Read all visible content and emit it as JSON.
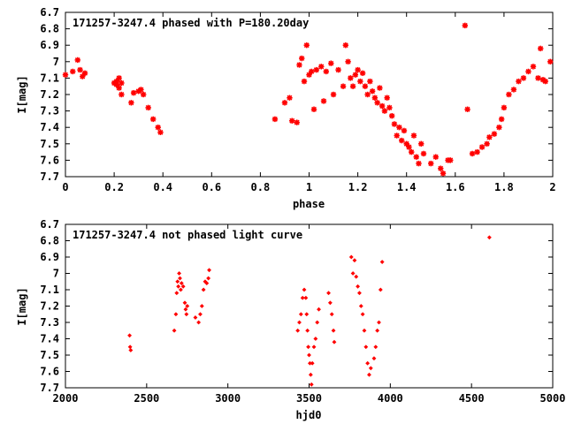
{
  "chart_data": [
    {
      "type": "scatter",
      "title": "171257-3247.4 phased with P=180.20day",
      "xlabel": "phase",
      "ylabel": "I[mag]",
      "xlim": [
        0,
        2
      ],
      "ylim": [
        6.7,
        7.7
      ],
      "y_inverted": true,
      "grid": false,
      "marker_color": "#ff0000",
      "marker": "star",
      "xticks": [
        "0",
        "0.2",
        "0.4",
        "0.6",
        "0.8",
        "1",
        "1.2",
        "1.4",
        "1.6",
        "1.8",
        "2"
      ],
      "yticks": [
        "6.7",
        "6.8",
        "6.9",
        "7",
        "7.1",
        "7.2",
        "7.3",
        "7.4",
        "7.5",
        "7.6",
        "7.7"
      ],
      "points": [
        [
          0.0,
          7.08
        ],
        [
          0.03,
          7.06
        ],
        [
          0.05,
          6.99
        ],
        [
          0.06,
          7.05
        ],
        [
          0.07,
          7.09
        ],
        [
          0.08,
          7.07
        ],
        [
          0.2,
          7.13
        ],
        [
          0.21,
          7.12
        ],
        [
          0.21,
          7.14
        ],
        [
          0.22,
          7.1
        ],
        [
          0.22,
          7.16
        ],
        [
          0.23,
          7.2
        ],
        [
          0.23,
          7.13
        ],
        [
          0.27,
          7.25
        ],
        [
          0.28,
          7.19
        ],
        [
          0.3,
          7.18
        ],
        [
          0.31,
          7.17
        ],
        [
          0.32,
          7.2
        ],
        [
          0.34,
          7.28
        ],
        [
          0.36,
          7.35
        ],
        [
          0.38,
          7.4
        ],
        [
          0.39,
          7.43
        ],
        [
          0.86,
          7.35
        ],
        [
          0.9,
          7.25
        ],
        [
          0.92,
          7.22
        ],
        [
          0.93,
          7.36
        ],
        [
          0.95,
          7.37
        ],
        [
          0.96,
          7.02
        ],
        [
          0.97,
          6.98
        ],
        [
          0.98,
          7.12
        ],
        [
          0.99,
          6.9
        ],
        [
          1.0,
          7.08
        ],
        [
          1.01,
          7.06
        ],
        [
          1.02,
          7.29
        ],
        [
          1.03,
          7.05
        ],
        [
          1.05,
          7.03
        ],
        [
          1.06,
          7.24
        ],
        [
          1.07,
          7.06
        ],
        [
          1.09,
          7.01
        ],
        [
          1.1,
          7.2
        ],
        [
          1.12,
          7.05
        ],
        [
          1.14,
          7.15
        ],
        [
          1.15,
          6.9
        ],
        [
          1.16,
          7.0
        ],
        [
          1.17,
          7.1
        ],
        [
          1.18,
          7.15
        ],
        [
          1.19,
          7.08
        ],
        [
          1.2,
          7.05
        ],
        [
          1.21,
          7.12
        ],
        [
          1.22,
          7.07
        ],
        [
          1.23,
          7.15
        ],
        [
          1.24,
          7.2
        ],
        [
          1.25,
          7.12
        ],
        [
          1.26,
          7.18
        ],
        [
          1.27,
          7.22
        ],
        [
          1.28,
          7.25
        ],
        [
          1.29,
          7.16
        ],
        [
          1.3,
          7.27
        ],
        [
          1.31,
          7.3
        ],
        [
          1.32,
          7.22
        ],
        [
          1.33,
          7.28
        ],
        [
          1.34,
          7.33
        ],
        [
          1.35,
          7.38
        ],
        [
          1.36,
          7.45
        ],
        [
          1.37,
          7.4
        ],
        [
          1.38,
          7.48
        ],
        [
          1.39,
          7.42
        ],
        [
          1.4,
          7.5
        ],
        [
          1.41,
          7.52
        ],
        [
          1.42,
          7.55
        ],
        [
          1.43,
          7.45
        ],
        [
          1.44,
          7.58
        ],
        [
          1.45,
          7.62
        ],
        [
          1.46,
          7.5
        ],
        [
          1.47,
          7.56
        ],
        [
          1.5,
          7.62
        ],
        [
          1.52,
          7.58
        ],
        [
          1.54,
          7.65
        ],
        [
          1.55,
          7.68
        ],
        [
          1.57,
          7.6
        ],
        [
          1.58,
          7.6
        ],
        [
          1.64,
          6.78
        ],
        [
          1.65,
          7.29
        ],
        [
          1.67,
          7.56
        ],
        [
          1.69,
          7.55
        ],
        [
          1.71,
          7.52
        ],
        [
          1.73,
          7.5
        ],
        [
          1.74,
          7.46
        ],
        [
          1.76,
          7.44
        ],
        [
          1.78,
          7.4
        ],
        [
          1.79,
          7.35
        ],
        [
          1.8,
          7.28
        ],
        [
          1.82,
          7.2
        ],
        [
          1.84,
          7.17
        ],
        [
          1.86,
          7.12
        ],
        [
          1.88,
          7.1
        ],
        [
          1.9,
          7.06
        ],
        [
          1.92,
          7.03
        ],
        [
          1.94,
          7.1
        ],
        [
          1.95,
          6.92
        ],
        [
          1.96,
          7.11
        ],
        [
          1.97,
          7.12
        ],
        [
          1.99,
          7.0
        ]
      ]
    },
    {
      "type": "scatter",
      "title": "171257-3247.4 not phased light curve",
      "xlabel": "hjd0",
      "ylabel": "I[mag]",
      "xlim": [
        2000,
        5000
      ],
      "ylim": [
        6.7,
        7.7
      ],
      "y_inverted": true,
      "grid": false,
      "marker_color": "#ff0000",
      "marker": "diamond",
      "xticks": [
        "2000",
        "2500",
        "3000",
        "3500",
        "4000",
        "4500",
        "5000"
      ],
      "yticks": [
        "6.7",
        "6.8",
        "6.9",
        "7",
        "7.1",
        "7.2",
        "7.3",
        "7.4",
        "7.5",
        "7.6",
        "7.7"
      ],
      "points": [
        [
          2395,
          7.38
        ],
        [
          2398,
          7.45
        ],
        [
          2402,
          7.47
        ],
        [
          2670,
          7.35
        ],
        [
          2680,
          7.25
        ],
        [
          2685,
          7.12
        ],
        [
          2690,
          7.05
        ],
        [
          2695,
          7.08
        ],
        [
          2700,
          7.0
        ],
        [
          2705,
          7.03
        ],
        [
          2710,
          7.1
        ],
        [
          2715,
          7.06
        ],
        [
          2725,
          7.08
        ],
        [
          2735,
          7.18
        ],
        [
          2740,
          7.22
        ],
        [
          2745,
          7.25
        ],
        [
          2750,
          7.2
        ],
        [
          2800,
          7.27
        ],
        [
          2820,
          7.3
        ],
        [
          2830,
          7.25
        ],
        [
          2840,
          7.2
        ],
        [
          2850,
          7.1
        ],
        [
          2860,
          7.05
        ],
        [
          2870,
          7.06
        ],
        [
          2880,
          7.03
        ],
        [
          2885,
          6.98
        ],
        [
          3430,
          7.35
        ],
        [
          3440,
          7.3
        ],
        [
          3450,
          7.25
        ],
        [
          3460,
          7.15
        ],
        [
          3470,
          7.1
        ],
        [
          3480,
          7.15
        ],
        [
          3485,
          7.25
        ],
        [
          3490,
          7.35
        ],
        [
          3495,
          7.45
        ],
        [
          3500,
          7.5
        ],
        [
          3505,
          7.55
        ],
        [
          3510,
          7.62
        ],
        [
          3515,
          7.68
        ],
        [
          3520,
          7.55
        ],
        [
          3530,
          7.45
        ],
        [
          3540,
          7.4
        ],
        [
          3550,
          7.3
        ],
        [
          3560,
          7.22
        ],
        [
          3620,
          7.12
        ],
        [
          3630,
          7.18
        ],
        [
          3640,
          7.25
        ],
        [
          3650,
          7.35
        ],
        [
          3655,
          7.42
        ],
        [
          3760,
          6.9
        ],
        [
          3770,
          7.0
        ],
        [
          3780,
          6.92
        ],
        [
          3790,
          7.02
        ],
        [
          3800,
          7.08
        ],
        [
          3810,
          7.12
        ],
        [
          3820,
          7.2
        ],
        [
          3830,
          7.25
        ],
        [
          3840,
          7.35
        ],
        [
          3850,
          7.45
        ],
        [
          3860,
          7.55
        ],
        [
          3870,
          7.62
        ],
        [
          3880,
          7.58
        ],
        [
          3900,
          7.52
        ],
        [
          3910,
          7.45
        ],
        [
          3920,
          7.35
        ],
        [
          3930,
          7.3
        ],
        [
          3940,
          7.1
        ],
        [
          3950,
          6.93
        ],
        [
          4610,
          6.78
        ]
      ]
    }
  ]
}
